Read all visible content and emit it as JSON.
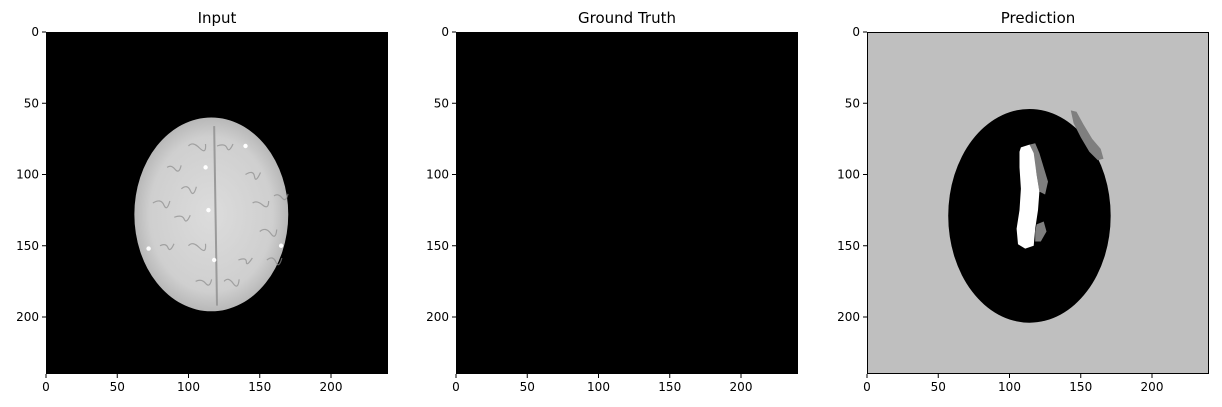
{
  "figure": {
    "panels": [
      {
        "title": "Input"
      },
      {
        "title": "Ground Truth"
      },
      {
        "title": "Prediction"
      }
    ]
  },
  "chart_data": [
    {
      "type": "heatmap",
      "title": "Input",
      "xlim": [
        0,
        240
      ],
      "ylim": [
        240,
        0
      ],
      "xticks": [
        0,
        50,
        100,
        150,
        200
      ],
      "yticks": [
        0,
        50,
        100,
        150,
        200
      ],
      "content": {
        "background": "#000000",
        "brain": {
          "cx": 116,
          "cy": 128,
          "rx": 54,
          "ry": 68,
          "fill": "#c8c8c8"
        },
        "midline_x": 118
      }
    },
    {
      "type": "heatmap",
      "title": "Ground Truth",
      "xlim": [
        0,
        240
      ],
      "ylim": [
        240,
        0
      ],
      "xticks": [
        0,
        50,
        100,
        150,
        200
      ],
      "yticks": [
        0,
        50,
        100,
        150,
        200
      ],
      "content": {
        "background": "#000000"
      }
    },
    {
      "type": "heatmap",
      "title": "Prediction",
      "xlim": [
        0,
        240
      ],
      "ylim": [
        240,
        0
      ],
      "xticks": [
        0,
        50,
        100,
        150,
        200
      ],
      "yticks": [
        0,
        50,
        100,
        150,
        200
      ],
      "content": {
        "background": "#bfbfbf",
        "brain": {
          "cx": 114,
          "cy": 129,
          "rx": 57,
          "ry": 75,
          "fill": "#000000"
        },
        "white_region": [
          [
            108,
            81
          ],
          [
            114,
            79
          ],
          [
            117,
            85
          ],
          [
            119,
            100
          ],
          [
            121,
            112
          ],
          [
            120,
            125
          ],
          [
            118,
            138
          ],
          [
            117,
            150
          ],
          [
            111,
            152
          ],
          [
            106,
            149
          ],
          [
            105,
            138
          ],
          [
            107,
            125
          ],
          [
            108,
            110
          ],
          [
            107,
            95
          ],
          [
            107,
            84
          ]
        ],
        "gray_regions": [
          [
            [
              114,
              79
            ],
            [
              118,
              78
            ],
            [
              121,
              85
            ],
            [
              124,
              95
            ],
            [
              127,
              105
            ],
            [
              125,
              114
            ],
            [
              121,
              112
            ],
            [
              119,
              100
            ],
            [
              117,
              88
            ]
          ],
          [
            [
              119,
              135
            ],
            [
              124,
              133
            ],
            [
              126,
              140
            ],
            [
              122,
              147
            ],
            [
              118,
              147
            ],
            [
              118,
              140
            ]
          ],
          [
            [
              143,
              55
            ],
            [
              147,
              56
            ],
            [
              152,
              65
            ],
            [
              158,
              75
            ],
            [
              164,
              82
            ],
            [
              166,
              89
            ],
            [
              162,
              90
            ],
            [
              156,
              84
            ],
            [
              150,
              74
            ],
            [
              145,
              64
            ]
          ]
        ],
        "gray_color": "#7f7f7f",
        "white_color": "#ffffff"
      }
    }
  ]
}
